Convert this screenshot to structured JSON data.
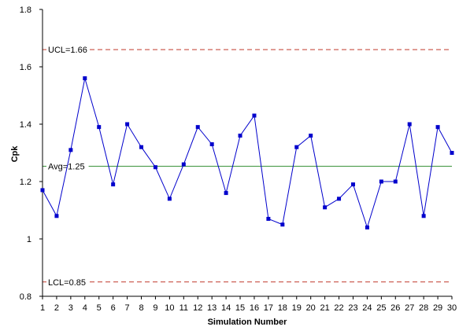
{
  "chart_data": {
    "type": "line",
    "xlabel": "Simulation Number",
    "ylabel": "Cpk",
    "ylim": [
      0.8,
      1.8
    ],
    "xlim": [
      1,
      30
    ],
    "yticks": [
      "0.8",
      "1",
      "1.2",
      "1.4",
      "1.6",
      "1.8"
    ],
    "grid": false,
    "legend": "none",
    "x": [
      1,
      2,
      3,
      4,
      5,
      6,
      7,
      8,
      9,
      10,
      11,
      12,
      13,
      14,
      15,
      16,
      17,
      18,
      19,
      20,
      21,
      22,
      23,
      24,
      25,
      26,
      27,
      28,
      29,
      30
    ],
    "series": [
      {
        "values": [
          1.17,
          1.08,
          1.31,
          1.56,
          1.39,
          1.19,
          1.4,
          1.32,
          1.25,
          1.14,
          1.26,
          1.39,
          1.33,
          1.16,
          1.36,
          1.43,
          1.07,
          1.05,
          1.32,
          1.36,
          1.11,
          1.14,
          1.19,
          1.04,
          1.2,
          1.2,
          1.4,
          1.08,
          1.39,
          1.3
        ],
        "color": "#0000cc"
      }
    ],
    "reference_lines": [
      {
        "label": "UCL=1.66",
        "value": 1.66,
        "color": "#c0392b",
        "style": "dashed"
      },
      {
        "label": "Avg=1.25",
        "value": 1.253,
        "color": "#2e8b2e",
        "style": "solid"
      },
      {
        "label": "LCL=0.85",
        "value": 0.85,
        "color": "#c0392b",
        "style": "dashed"
      }
    ]
  }
}
